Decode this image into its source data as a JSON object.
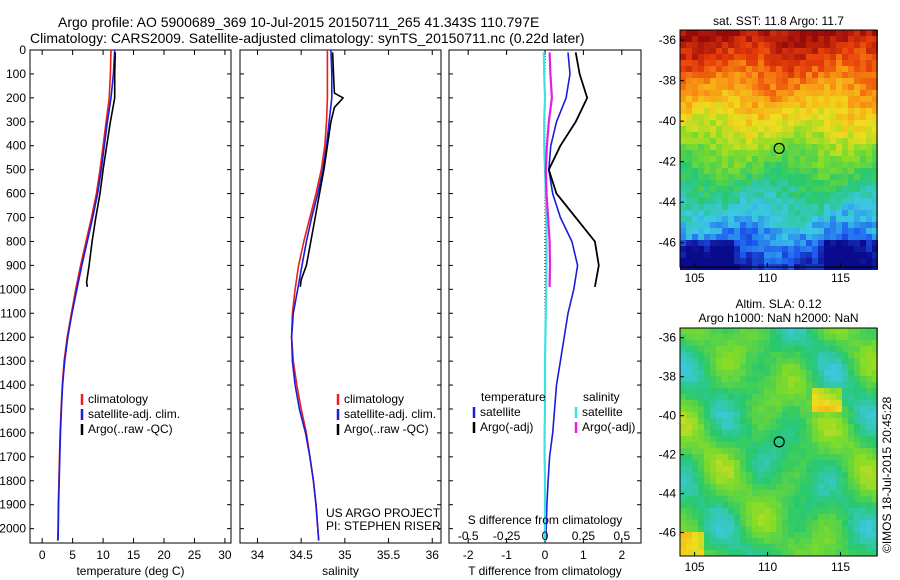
{
  "header": {
    "line1": "Argo profile: AO 5900689_369 10-Jul-2015 20150711_265 41.343S 110.797E",
    "line2": "Climatology: CARS2009. Satellite-adjusted climatology: synTS_20150711.nc (0.22d later)"
  },
  "credits": {
    "project": "US ARGO PROJECT",
    "pi": "PI: STEPHEN RISER",
    "footer": "©IMOS 18-Jul-2015 20:45:28"
  },
  "colors": {
    "climatology": "#e8201c",
    "satellite": "#1c1cdc",
    "argo": "#000000",
    "sat_salinity": "#3ee0e0",
    "argo_salinity": "#e020e0"
  },
  "chart_data": [
    {
      "id": "temperature",
      "type": "line",
      "xlabel": "temperature (deg C)",
      "ylabel": "",
      "xlim": [
        -2,
        31
      ],
      "ylim": [
        2060,
        0
      ],
      "xticks": [
        0,
        5,
        10,
        15,
        20,
        25,
        30
      ],
      "yticks": [
        0,
        100,
        200,
        300,
        400,
        500,
        600,
        700,
        800,
        900,
        1000,
        1100,
        1200,
        1300,
        1400,
        1500,
        1600,
        1700,
        1800,
        1900,
        2000
      ],
      "legend": {
        "placement": "bottom-right",
        "entries": [
          "climatology",
          "satellite-adj. clim.",
          "Argo(..raw -QC)"
        ]
      },
      "series": [
        {
          "name": "climatology",
          "color": "#e8201c",
          "points": [
            [
              11.3,
              0
            ],
            [
              11.2,
              100
            ],
            [
              11.0,
              200
            ],
            [
              10.5,
              300
            ],
            [
              10.0,
              400
            ],
            [
              9.5,
              500
            ],
            [
              8.9,
              600
            ],
            [
              8.1,
              700
            ],
            [
              7.2,
              800
            ],
            [
              6.3,
              900
            ],
            [
              5.5,
              1000
            ],
            [
              4.8,
              1100
            ],
            [
              4.1,
              1200
            ],
            [
              3.6,
              1300
            ],
            [
              3.3,
              1400
            ],
            [
              3.1,
              1500
            ],
            [
              2.95,
              1600
            ],
            [
              2.85,
              1700
            ],
            [
              2.75,
              1800
            ],
            [
              2.65,
              1900
            ],
            [
              2.6,
              2000
            ],
            [
              2.55,
              2050
            ]
          ]
        },
        {
          "name": "satellite-adj. clim.",
          "color": "#1c1cdc",
          "points": [
            [
              11.9,
              0
            ],
            [
              11.7,
              100
            ],
            [
              11.3,
              200
            ],
            [
              10.7,
              300
            ],
            [
              10.2,
              400
            ],
            [
              9.7,
              500
            ],
            [
              9.1,
              600
            ],
            [
              8.3,
              700
            ],
            [
              7.4,
              800
            ],
            [
              6.5,
              900
            ],
            [
              5.7,
              1000
            ],
            [
              4.9,
              1100
            ],
            [
              4.2,
              1200
            ],
            [
              3.7,
              1300
            ],
            [
              3.35,
              1400
            ],
            [
              3.15,
              1500
            ],
            [
              3.0,
              1600
            ],
            [
              2.9,
              1700
            ],
            [
              2.8,
              1800
            ],
            [
              2.7,
              1900
            ],
            [
              2.65,
              2000
            ],
            [
              2.6,
              2050
            ]
          ]
        },
        {
          "name": "Argo(..raw -QC)",
          "color": "#000000",
          "points": [
            [
              12.0,
              10
            ],
            [
              11.9,
              100
            ],
            [
              11.9,
              200
            ],
            [
              11.2,
              300
            ],
            [
              10.6,
              400
            ],
            [
              10.0,
              500
            ],
            [
              9.5,
              600
            ],
            [
              8.8,
              700
            ],
            [
              8.2,
              800
            ],
            [
              7.7,
              900
            ],
            [
              7.3,
              970
            ],
            [
              7.4,
              990
            ]
          ]
        }
      ]
    },
    {
      "id": "salinity",
      "type": "line",
      "xlabel": "salinity",
      "ylabel": "",
      "xlim": [
        33.8,
        36.1
      ],
      "ylim": [
        2060,
        0
      ],
      "xticks": [
        34,
        34.5,
        35,
        35.5,
        36
      ],
      "yticks": [],
      "legend": {
        "placement": "bottom-right",
        "entries": [
          "climatology",
          "satellite-adj. clim.",
          "Argo(..raw -QC)"
        ]
      },
      "series": [
        {
          "name": "climatology",
          "color": "#e8201c",
          "points": [
            [
              34.8,
              0
            ],
            [
              34.8,
              100
            ],
            [
              34.8,
              200
            ],
            [
              34.79,
              300
            ],
            [
              34.77,
              400
            ],
            [
              34.73,
              500
            ],
            [
              34.67,
              600
            ],
            [
              34.6,
              700
            ],
            [
              34.53,
              800
            ],
            [
              34.47,
              900
            ],
            [
              34.43,
              1000
            ],
            [
              34.4,
              1100
            ],
            [
              34.39,
              1200
            ],
            [
              34.41,
              1300
            ],
            [
              34.45,
              1400
            ],
            [
              34.5,
              1500
            ],
            [
              34.56,
              1600
            ],
            [
              34.6,
              1700
            ],
            [
              34.64,
              1800
            ],
            [
              34.67,
              1900
            ],
            [
              34.69,
              2000
            ],
            [
              34.7,
              2050
            ]
          ]
        },
        {
          "name": "satellite-adj. clim.",
          "color": "#1c1cdc",
          "points": [
            [
              34.84,
              0
            ],
            [
              34.85,
              100
            ],
            [
              34.85,
              200
            ],
            [
              34.82,
              300
            ],
            [
              34.79,
              400
            ],
            [
              34.75,
              500
            ],
            [
              34.69,
              600
            ],
            [
              34.62,
              700
            ],
            [
              34.56,
              800
            ],
            [
              34.51,
              900
            ],
            [
              34.46,
              1000
            ],
            [
              34.41,
              1100
            ],
            [
              34.39,
              1200
            ],
            [
              34.4,
              1300
            ],
            [
              34.43,
              1400
            ],
            [
              34.48,
              1500
            ],
            [
              34.55,
              1600
            ],
            [
              34.6,
              1700
            ],
            [
              34.64,
              1800
            ],
            [
              34.67,
              1900
            ],
            [
              34.69,
              2000
            ],
            [
              34.7,
              2050
            ]
          ]
        },
        {
          "name": "Argo(..raw -QC)",
          "color": "#000000",
          "points": [
            [
              34.86,
              10
            ],
            [
              34.87,
              100
            ],
            [
              34.88,
              180
            ],
            [
              34.98,
              200
            ],
            [
              34.88,
              240
            ],
            [
              34.84,
              300
            ],
            [
              34.8,
              400
            ],
            [
              34.76,
              500
            ],
            [
              34.71,
              600
            ],
            [
              34.66,
              700
            ],
            [
              34.61,
              800
            ],
            [
              34.56,
              900
            ],
            [
              34.5,
              960
            ],
            [
              34.49,
              990
            ]
          ]
        }
      ]
    },
    {
      "id": "differences",
      "type": "line",
      "xlabel": "T difference from climatology",
      "xlabel_top": "S difference from climatology",
      "xlim": [
        -2.5,
        2.5
      ],
      "ylim": [
        2060,
        0
      ],
      "xticks": [
        -2,
        -1,
        0,
        1,
        2
      ],
      "xticks_s": [
        -0.5,
        -0.25,
        0,
        0.25,
        0.5
      ],
      "yticks": [],
      "legend": {
        "placement": "bottom",
        "temperature_title": "temperature",
        "salinity_title": "salinity",
        "entries": [
          "satellite",
          "Argo(-adj)",
          "satellite",
          "Argo(-adj)"
        ]
      },
      "series": [
        {
          "name": "temperature satellite",
          "color": "#1c1cdc",
          "points": [
            [
              0.6,
              10
            ],
            [
              0.65,
              100
            ],
            [
              0.55,
              200
            ],
            [
              0.3,
              300
            ],
            [
              0.15,
              400
            ],
            [
              0.1,
              500
            ],
            [
              0.2,
              600
            ],
            [
              0.4,
              700
            ],
            [
              0.7,
              800
            ],
            [
              0.85,
              900
            ],
            [
              0.75,
              1000
            ],
            [
              0.6,
              1100
            ],
            [
              0.5,
              1200
            ],
            [
              0.4,
              1300
            ],
            [
              0.3,
              1400
            ],
            [
              0.25,
              1500
            ],
            [
              0.2,
              1600
            ],
            [
              0.12,
              1700
            ],
            [
              0.08,
              1800
            ],
            [
              0.05,
              1900
            ],
            [
              0.03,
              2000
            ],
            [
              0.02,
              2050
            ]
          ]
        },
        {
          "name": "temperature Argo(-adj)",
          "color": "#000000",
          "points": [
            [
              0.8,
              10
            ],
            [
              0.9,
              100
            ],
            [
              1.1,
              200
            ],
            [
              0.8,
              300
            ],
            [
              0.4,
              400
            ],
            [
              0.1,
              500
            ],
            [
              0.3,
              600
            ],
            [
              0.8,
              700
            ],
            [
              1.3,
              800
            ],
            [
              1.4,
              900
            ],
            [
              1.3,
              990
            ]
          ]
        },
        {
          "name": "salinity satellite",
          "color": "#3ee0e0",
          "points": [
            [
              -0.03,
              10
            ],
            [
              -0.02,
              100
            ],
            [
              0.0,
              200
            ],
            [
              -0.02,
              300
            ],
            [
              -0.02,
              400
            ],
            [
              0.0,
              500
            ],
            [
              0.02,
              600
            ],
            [
              0.03,
              700
            ],
            [
              0.04,
              800
            ],
            [
              0.04,
              900
            ],
            [
              0.03,
              1000
            ],
            [
              0.02,
              1100
            ],
            [
              0.01,
              1200
            ],
            [
              0.0,
              1300
            ],
            [
              0.0,
              1400
            ],
            [
              0.0,
              1500
            ],
            [
              -0.01,
              1600
            ],
            [
              -0.01,
              1700
            ],
            [
              0.0,
              1800
            ],
            [
              0.0,
              1900
            ],
            [
              0.0,
              2000
            ],
            [
              0.0,
              2050
            ]
          ]
        },
        {
          "name": "salinity Argo(-adj)",
          "color": "#e020e0",
          "points": [
            [
              0.12,
              10
            ],
            [
              0.14,
              100
            ],
            [
              0.18,
              200
            ],
            [
              0.1,
              300
            ],
            [
              0.05,
              400
            ],
            [
              0.02,
              500
            ],
            [
              0.04,
              600
            ],
            [
              0.08,
              700
            ],
            [
              0.12,
              800
            ],
            [
              0.13,
              900
            ],
            [
              0.12,
              990
            ]
          ]
        }
      ]
    },
    {
      "id": "sst-map",
      "type": "heatmap",
      "title": "sat. SST: 11.8  Argo: 11.7",
      "xlim": [
        104,
        117.5
      ],
      "ylim": [
        -47.2,
        -35.5
      ],
      "xticks": [
        105,
        110,
        115
      ],
      "yticks": [
        -36,
        -38,
        -40,
        -42,
        -44,
        -46
      ],
      "marker": {
        "lon": 110.797,
        "lat": -41.343
      }
    },
    {
      "id": "sla-map",
      "type": "heatmap",
      "title": "Altim. SLA: 0.12",
      "subtitle": "Argo h1000: NaN  h2000: NaN",
      "xlim": [
        104,
        117.5
      ],
      "ylim": [
        -47.2,
        -35.5
      ],
      "xticks": [
        105,
        110,
        115
      ],
      "yticks": [
        -36,
        -38,
        -40,
        -42,
        -44,
        -46
      ],
      "marker": {
        "lon": 110.797,
        "lat": -41.343
      }
    }
  ]
}
